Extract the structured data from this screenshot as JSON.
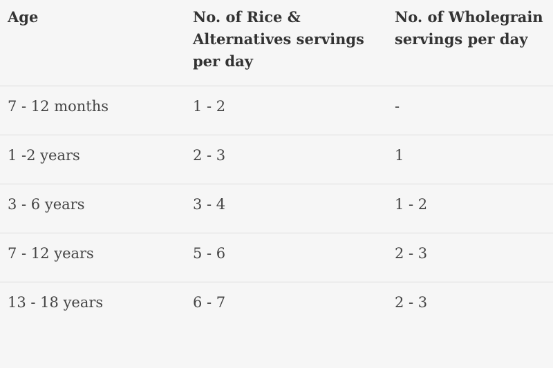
{
  "table": {
    "headers": [
      "Age",
      "No. of Rice & Alternatives servings per day",
      "No. of Wholegrain servings per day"
    ],
    "rows": [
      [
        "7 - 12 months",
        "1 - 2",
        "-"
      ],
      [
        "1 -2 years",
        "2 - 3",
        "1"
      ],
      [
        "3 - 6 years",
        "3 - 4",
        "1 - 2"
      ],
      [
        "7 - 12 years",
        "5 - 6",
        "2 - 3"
      ],
      [
        "13 - 18 years",
        "6 - 7",
        "2 - 3"
      ]
    ]
  },
  "colors": {
    "background": "#f6f6f6",
    "text": "#333333",
    "divider": "#dcdcdc"
  }
}
